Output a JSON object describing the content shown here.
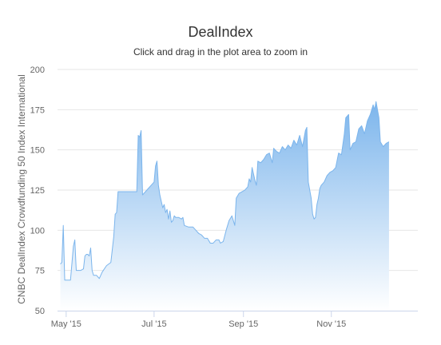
{
  "chart_data": {
    "type": "area",
    "title": "DealIndex",
    "subtitle": "Click and drag in the plot area to zoom in",
    "xlabel": "",
    "ylabel": "CNBC DealIndex Crowdfunding 50 Index International",
    "ylim": [
      50,
      200
    ],
    "yticks": [
      50,
      75,
      100,
      125,
      150,
      175,
      200
    ],
    "xlim": [
      "2015-04-25",
      "2015-12-31"
    ],
    "xticks": [
      {
        "date": "2015-05-01",
        "label": "May '15"
      },
      {
        "date": "2015-07-01",
        "label": "Jul '15"
      },
      {
        "date": "2015-09-01",
        "label": "Sep '15"
      },
      {
        "date": "2015-11-01",
        "label": "Nov '15"
      }
    ],
    "grid": true,
    "legend": "none",
    "colors": {
      "line": "#7cb5ec",
      "fill_top": "#7cb5ec",
      "fill_bottom": "#ffffff",
      "grid": "#e6e6e6"
    },
    "series": [
      {
        "points": [
          [
            "2015-04-27",
            79
          ],
          [
            "2015-04-28",
            80
          ],
          [
            "2015-04-29",
            103
          ],
          [
            "2015-04-30",
            69
          ],
          [
            "2015-05-04",
            69
          ],
          [
            "2015-05-06",
            90
          ],
          [
            "2015-05-07",
            94
          ],
          [
            "2015-05-08",
            75
          ],
          [
            "2015-05-11",
            75
          ],
          [
            "2015-05-13",
            76
          ],
          [
            "2015-05-14",
            84
          ],
          [
            "2015-05-15",
            85
          ],
          [
            "2015-05-16",
            85
          ],
          [
            "2015-05-17",
            84
          ],
          [
            "2015-05-18",
            89
          ],
          [
            "2015-05-19",
            75
          ],
          [
            "2015-05-20",
            72
          ],
          [
            "2015-05-22",
            72
          ],
          [
            "2015-05-24",
            70
          ],
          [
            "2015-05-26",
            74
          ],
          [
            "2015-05-29",
            78
          ],
          [
            "2015-06-01",
            80
          ],
          [
            "2015-06-03",
            96
          ],
          [
            "2015-06-04",
            110
          ],
          [
            "2015-06-05",
            111
          ],
          [
            "2015-06-06",
            124
          ],
          [
            "2015-06-10",
            124
          ],
          [
            "2015-06-14",
            124
          ],
          [
            "2015-06-17",
            124
          ],
          [
            "2015-06-19",
            124
          ],
          [
            "2015-06-20",
            159
          ],
          [
            "2015-06-21",
            158
          ],
          [
            "2015-06-22",
            162
          ],
          [
            "2015-06-23",
            122
          ],
          [
            "2015-06-25",
            124
          ],
          [
            "2015-06-27",
            126
          ],
          [
            "2015-06-29",
            128
          ],
          [
            "2015-07-01",
            130
          ],
          [
            "2015-07-02",
            140
          ],
          [
            "2015-07-03",
            143
          ],
          [
            "2015-07-04",
            128
          ],
          [
            "2015-07-05",
            122
          ],
          [
            "2015-07-06",
            118
          ],
          [
            "2015-07-07",
            114
          ],
          [
            "2015-07-08",
            116
          ],
          [
            "2015-07-09",
            111
          ],
          [
            "2015-07-10",
            113
          ],
          [
            "2015-07-11",
            107
          ],
          [
            "2015-07-12",
            112
          ],
          [
            "2015-07-13",
            105
          ],
          [
            "2015-07-14",
            106
          ],
          [
            "2015-07-15",
            109
          ],
          [
            "2015-07-16",
            108
          ],
          [
            "2015-07-18",
            108
          ],
          [
            "2015-07-20",
            107
          ],
          [
            "2015-07-21",
            108
          ],
          [
            "2015-07-22",
            103
          ],
          [
            "2015-07-25",
            102
          ],
          [
            "2015-07-28",
            102
          ],
          [
            "2015-07-30",
            100
          ],
          [
            "2015-08-01",
            98
          ],
          [
            "2015-08-03",
            97
          ],
          [
            "2015-08-05",
            95
          ],
          [
            "2015-08-07",
            95
          ],
          [
            "2015-08-09",
            92
          ],
          [
            "2015-08-11",
            92
          ],
          [
            "2015-08-13",
            94
          ],
          [
            "2015-08-15",
            94
          ],
          [
            "2015-08-16",
            92
          ],
          [
            "2015-08-18",
            93
          ],
          [
            "2015-08-20",
            100
          ],
          [
            "2015-08-22",
            106
          ],
          [
            "2015-08-24",
            109
          ],
          [
            "2015-08-26",
            103
          ],
          [
            "2015-08-27",
            120
          ],
          [
            "2015-08-29",
            123
          ],
          [
            "2015-08-31",
            124
          ],
          [
            "2015-09-02",
            125
          ],
          [
            "2015-09-04",
            127
          ],
          [
            "2015-09-05",
            132
          ],
          [
            "2015-09-06",
            130
          ],
          [
            "2015-09-07",
            139
          ],
          [
            "2015-09-09",
            131
          ],
          [
            "2015-09-10",
            128
          ],
          [
            "2015-09-11",
            143
          ],
          [
            "2015-09-13",
            142
          ],
          [
            "2015-09-15",
            144
          ],
          [
            "2015-09-17",
            147
          ],
          [
            "2015-09-19",
            148
          ],
          [
            "2015-09-21",
            142
          ],
          [
            "2015-09-22",
            151
          ],
          [
            "2015-09-24",
            149
          ],
          [
            "2015-09-26",
            148
          ],
          [
            "2015-09-28",
            152
          ],
          [
            "2015-09-30",
            150
          ],
          [
            "2015-10-02",
            153
          ],
          [
            "2015-10-04",
            151
          ],
          [
            "2015-10-06",
            156
          ],
          [
            "2015-10-08",
            153
          ],
          [
            "2015-10-10",
            159
          ],
          [
            "2015-10-12",
            152
          ],
          [
            "2015-10-14",
            162
          ],
          [
            "2015-10-15",
            164
          ],
          [
            "2015-10-16",
            130
          ],
          [
            "2015-10-18",
            120
          ],
          [
            "2015-10-19",
            110
          ],
          [
            "2015-10-20",
            107
          ],
          [
            "2015-10-21",
            108
          ],
          [
            "2015-10-22",
            116
          ],
          [
            "2015-10-23",
            120
          ],
          [
            "2015-10-24",
            126
          ],
          [
            "2015-10-25",
            128
          ],
          [
            "2015-10-27",
            130
          ],
          [
            "2015-10-29",
            134
          ],
          [
            "2015-10-31",
            136
          ],
          [
            "2015-11-02",
            137
          ],
          [
            "2015-11-04",
            139
          ],
          [
            "2015-11-06",
            148
          ],
          [
            "2015-11-08",
            147
          ],
          [
            "2015-11-10",
            160
          ],
          [
            "2015-11-11",
            170
          ],
          [
            "2015-11-13",
            172
          ],
          [
            "2015-11-14",
            150
          ],
          [
            "2015-11-16",
            154
          ],
          [
            "2015-11-18",
            155
          ],
          [
            "2015-11-20",
            163
          ],
          [
            "2015-11-22",
            165
          ],
          [
            "2015-11-24",
            160
          ],
          [
            "2015-11-26",
            168
          ],
          [
            "2015-11-28",
            172
          ],
          [
            "2015-11-30",
            178
          ],
          [
            "2015-12-01",
            175
          ],
          [
            "2015-12-02",
            180
          ],
          [
            "2015-12-04",
            170
          ],
          [
            "2015-12-05",
            155
          ],
          [
            "2015-12-07",
            152
          ],
          [
            "2015-12-09",
            154
          ],
          [
            "2015-12-11",
            155
          ]
        ]
      }
    ]
  }
}
